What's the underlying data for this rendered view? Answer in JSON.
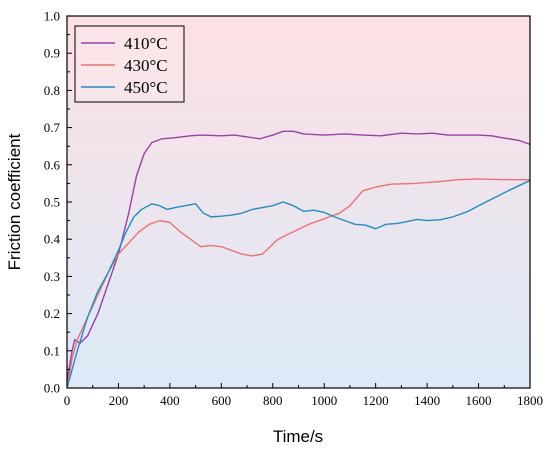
{
  "chart_data": {
    "type": "line",
    "xlabel": "Time/s",
    "ylabel": "Friction coefficient",
    "xlim": [
      0,
      1800
    ],
    "ylim": [
      0.0,
      1.0
    ],
    "xticks": [
      0,
      200,
      400,
      600,
      800,
      1000,
      1200,
      1400,
      1600,
      1800
    ],
    "yticks": [
      0.0,
      0.1,
      0.2,
      0.3,
      0.4,
      0.5,
      0.6,
      0.7,
      0.8,
      0.9,
      1.0
    ],
    "xtick_labels": [
      "0",
      "200",
      "400",
      "600",
      "800",
      "1000",
      "1200",
      "1400",
      "1600",
      "1800"
    ],
    "ytick_labels": [
      "0.0",
      "0.1",
      "0.2",
      "0.3",
      "0.4",
      "0.5",
      "0.6",
      "0.7",
      "0.8",
      "0.9",
      "1.0"
    ],
    "grid": false,
    "legend_position": "top-left",
    "background_gradient": {
      "top": "#fde0e3",
      "bottom": "#dbeaf8"
    },
    "series": [
      {
        "name": "410°C",
        "color": "#9b3fa7",
        "points": [
          [
            0,
            0.02
          ],
          [
            20,
            0.1
          ],
          [
            30,
            0.13
          ],
          [
            50,
            0.12
          ],
          [
            80,
            0.14
          ],
          [
            120,
            0.2
          ],
          [
            160,
            0.28
          ],
          [
            200,
            0.36
          ],
          [
            240,
            0.47
          ],
          [
            270,
            0.57
          ],
          [
            300,
            0.63
          ],
          [
            330,
            0.66
          ],
          [
            370,
            0.67
          ],
          [
            420,
            0.673
          ],
          [
            480,
            0.678
          ],
          [
            520,
            0.68
          ],
          [
            600,
            0.678
          ],
          [
            650,
            0.68
          ],
          [
            700,
            0.675
          ],
          [
            750,
            0.67
          ],
          [
            800,
            0.68
          ],
          [
            840,
            0.69
          ],
          [
            880,
            0.69
          ],
          [
            920,
            0.683
          ],
          [
            1000,
            0.68
          ],
          [
            1080,
            0.683
          ],
          [
            1150,
            0.68
          ],
          [
            1220,
            0.678
          ],
          [
            1300,
            0.685
          ],
          [
            1360,
            0.683
          ],
          [
            1420,
            0.685
          ],
          [
            1480,
            0.68
          ],
          [
            1540,
            0.68
          ],
          [
            1600,
            0.68
          ],
          [
            1650,
            0.678
          ],
          [
            1700,
            0.672
          ],
          [
            1760,
            0.665
          ],
          [
            1800,
            0.655
          ]
        ]
      },
      {
        "name": "430°C",
        "color": "#f07070",
        "points": [
          [
            0,
            0.0
          ],
          [
            20,
            0.08
          ],
          [
            40,
            0.13
          ],
          [
            80,
            0.19
          ],
          [
            120,
            0.25
          ],
          [
            160,
            0.31
          ],
          [
            200,
            0.36
          ],
          [
            240,
            0.39
          ],
          [
            280,
            0.42
          ],
          [
            320,
            0.44
          ],
          [
            360,
            0.45
          ],
          [
            400,
            0.445
          ],
          [
            440,
            0.42
          ],
          [
            480,
            0.4
          ],
          [
            520,
            0.38
          ],
          [
            560,
            0.383
          ],
          [
            600,
            0.38
          ],
          [
            640,
            0.37
          ],
          [
            680,
            0.36
          ],
          [
            720,
            0.355
          ],
          [
            760,
            0.36
          ],
          [
            790,
            0.38
          ],
          [
            820,
            0.4
          ],
          [
            880,
            0.42
          ],
          [
            940,
            0.44
          ],
          [
            1000,
            0.455
          ],
          [
            1060,
            0.47
          ],
          [
            1100,
            0.49
          ],
          [
            1150,
            0.53
          ],
          [
            1200,
            0.54
          ],
          [
            1260,
            0.548
          ],
          [
            1350,
            0.55
          ],
          [
            1450,
            0.555
          ],
          [
            1520,
            0.56
          ],
          [
            1600,
            0.562
          ],
          [
            1700,
            0.56
          ],
          [
            1800,
            0.56
          ]
        ]
      },
      {
        "name": "450°C",
        "color": "#1f8fc1",
        "points": [
          [
            0,
            0.0
          ],
          [
            20,
            0.05
          ],
          [
            40,
            0.1
          ],
          [
            80,
            0.19
          ],
          [
            120,
            0.26
          ],
          [
            160,
            0.31
          ],
          [
            200,
            0.37
          ],
          [
            230,
            0.42
          ],
          [
            260,
            0.46
          ],
          [
            290,
            0.48
          ],
          [
            330,
            0.495
          ],
          [
            360,
            0.49
          ],
          [
            390,
            0.48
          ],
          [
            420,
            0.485
          ],
          [
            460,
            0.49
          ],
          [
            500,
            0.495
          ],
          [
            530,
            0.47
          ],
          [
            560,
            0.46
          ],
          [
            600,
            0.462
          ],
          [
            640,
            0.465
          ],
          [
            680,
            0.47
          ],
          [
            720,
            0.48
          ],
          [
            760,
            0.485
          ],
          [
            800,
            0.49
          ],
          [
            840,
            0.5
          ],
          [
            880,
            0.49
          ],
          [
            920,
            0.475
          ],
          [
            960,
            0.478
          ],
          [
            1000,
            0.472
          ],
          [
            1040,
            0.46
          ],
          [
            1080,
            0.45
          ],
          [
            1120,
            0.44
          ],
          [
            1160,
            0.438
          ],
          [
            1200,
            0.428
          ],
          [
            1240,
            0.44
          ],
          [
            1280,
            0.442
          ],
          [
            1320,
            0.447
          ],
          [
            1360,
            0.453
          ],
          [
            1400,
            0.45
          ],
          [
            1450,
            0.452
          ],
          [
            1500,
            0.46
          ],
          [
            1560,
            0.475
          ],
          [
            1600,
            0.49
          ],
          [
            1700,
            0.525
          ],
          [
            1800,
            0.558
          ]
        ]
      }
    ]
  }
}
